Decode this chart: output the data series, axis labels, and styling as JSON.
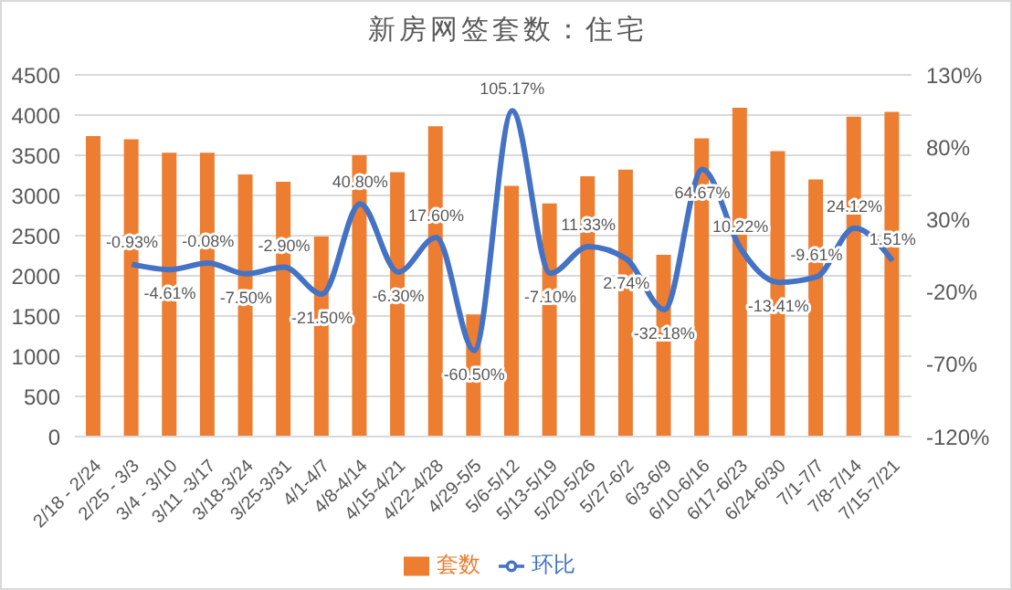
{
  "chart_data": {
    "type": "bar",
    "title": "新房网签套数：住宅",
    "categories": [
      "2/18 - 2/24",
      "2/25 - 3/3",
      "3/4 - 3/10",
      "3/11 -3/17",
      "3/18-3/24",
      "3/25-3/31",
      "4/1-4/7",
      "4/8-4/14",
      "4/15-4/21",
      "4/22-4/28",
      "4/29-5/5",
      "5/6-5/12",
      "5/13-5/19",
      "5/20-5/26",
      "5/27-6/2",
      "6/3-6/9",
      "6/10-6/16",
      "6/17-6/23",
      "6/24-6/30",
      "7/1-7/7",
      "7/8-7/14",
      "7/15-7/21"
    ],
    "series": [
      {
        "name": "套数",
        "color": "#ed7d31",
        "values": [
          3740,
          3700,
          3530,
          3530,
          3260,
          3170,
          2490,
          3500,
          3290,
          3860,
          1520,
          3120,
          2900,
          3240,
          3320,
          2260,
          3710,
          4090,
          3550,
          3200,
          3980,
          4040
        ]
      },
      {
        "name": "环比",
        "type": "line",
        "axis": "y2",
        "color": "#4472c4",
        "values": [
          null,
          -0.93,
          -4.61,
          -0.08,
          -7.5,
          -2.9,
          -21.5,
          40.8,
          -6.3,
          17.6,
          -60.5,
          105.17,
          -7.1,
          11.33,
          2.74,
          -32.18,
          64.67,
          10.22,
          -13.41,
          -9.61,
          24.12,
          1.51
        ],
        "value_labels": [
          null,
          "-0.93%",
          "-4.61%",
          "-0.08%",
          "-7.50%",
          "-2.90%",
          "-21.50%",
          "40.80%",
          "-6.30%",
          "17.60%",
          "-60.50%",
          "105.17%",
          "-7.10%",
          "11.33%",
          "2.74%",
          "-32.18%",
          "64.67%",
          "10.22%",
          "-13.41%",
          "-9.61%",
          "24.12%",
          "1.51%"
        ]
      }
    ],
    "ylim": [
      0,
      4500
    ],
    "yticks": [
      0,
      500,
      1000,
      1500,
      2000,
      2500,
      3000,
      3500,
      4000,
      4500
    ],
    "y2lim": [
      -120,
      130
    ],
    "y2ticks": [
      {
        "value": -120,
        "label": "-120%"
      },
      {
        "value": -70,
        "label": "-70%"
      },
      {
        "value": -20,
        "label": "-20%"
      },
      {
        "value": 30,
        "label": "30%"
      },
      {
        "value": 80,
        "label": "80%"
      },
      {
        "value": 130,
        "label": "130%"
      }
    ],
    "grid": "y",
    "legend": "bottom",
    "marker": "none",
    "line_style": "solid"
  }
}
